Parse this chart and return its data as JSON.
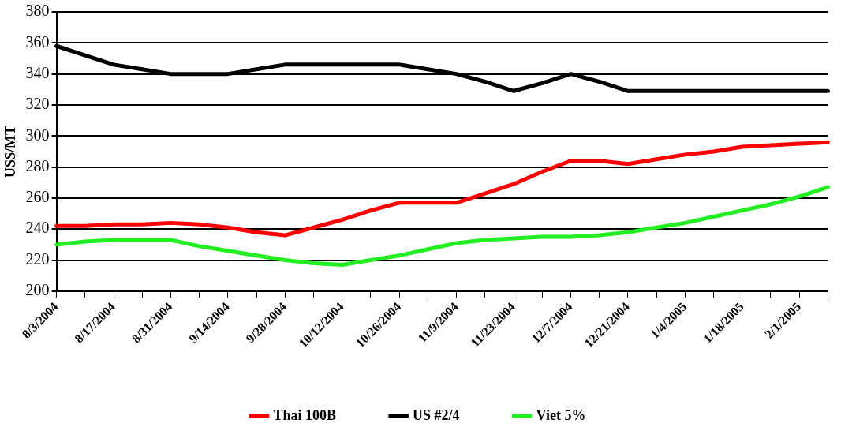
{
  "chart_data": {
    "type": "line",
    "ylabel": "US$/MT",
    "categories": [
      "8/3/2004",
      null,
      "8/17/2004",
      null,
      "8/31/2004",
      null,
      "9/14/2004",
      null,
      "9/28/2004",
      null,
      "10/12/2004",
      null,
      "10/26/2004",
      null,
      "11/9/2004",
      null,
      "11/23/2004",
      null,
      "12/7/2004",
      null,
      "12/21/2004",
      null,
      "1/4/2005",
      null,
      "1/18/2005",
      null,
      "2/1/2005",
      null
    ],
    "series": [
      {
        "name": "Thai 100B",
        "color": "#ff0000",
        "values": [
          242,
          242,
          243,
          243,
          244,
          243,
          241,
          238,
          236,
          241,
          246,
          252,
          257,
          257,
          257,
          263,
          269,
          277,
          284,
          284,
          282,
          285,
          288,
          290,
          293,
          294,
          295,
          296
        ]
      },
      {
        "name": "US #2/4",
        "color": "#000000",
        "values": [
          358,
          352,
          346,
          343,
          340,
          340,
          340,
          343,
          346,
          346,
          346,
          346,
          346,
          343,
          340,
          335,
          329,
          334,
          340,
          335,
          329,
          329,
          329,
          329,
          329,
          329,
          329,
          329
        ]
      },
      {
        "name": "Viet 5%",
        "color": "#22ee22",
        "values": [
          230,
          232,
          233,
          233,
          233,
          229,
          226,
          223,
          220,
          218,
          217,
          220,
          223,
          227,
          231,
          233,
          234,
          235,
          235,
          236,
          238,
          241,
          244,
          248,
          252,
          256,
          261,
          267
        ]
      }
    ],
    "ylim": [
      200,
      380
    ],
    "yticks": [
      200,
      220,
      240,
      260,
      280,
      300,
      320,
      340,
      360,
      380
    ],
    "grid": "y",
    "legend": "bottom",
    "marker": "none",
    "line_style": "solid"
  }
}
